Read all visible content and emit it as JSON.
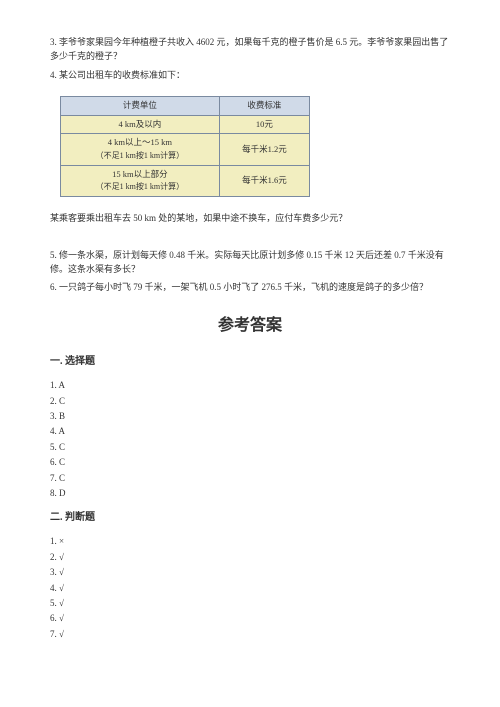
{
  "questions": {
    "q3": "3. 李爷爷家果园今年种植橙子共收入 4602 元，如果每千克的橙子售价是 6.5 元。李爷爷家果园出售了多少千克的橙子？",
    "q4": "4. 某公司出租车的收费标准如下：",
    "q4_follow": "某乘客要乘出租车去 50 km 处的某地，如果中途不换车，应付车费多少元？",
    "q5": "5. 修一条水渠，原计划每天修 0.48 千米。实际每天比原计划多修 0.15 千米 12 天后还差 0.7 千米没有修。这条水渠有多长？",
    "q6": "6. 一只鸽子每小时飞 79 千米，一架飞机 0.5 小时飞了 276.5 千米，飞机的速度是鸽子的多少倍？"
  },
  "table": {
    "header_left": "计费单位",
    "header_right": "收费标准",
    "border_color": "#7a8aa0",
    "header_bg": "#d0dae8",
    "cell_bg": "#f2eec0",
    "rows": [
      {
        "left_main": "4 km及以内",
        "left_sub": "",
        "right": "10元"
      },
      {
        "left_main": "4 km以上～15 km",
        "left_sub": "（不足1 km按1 km计算）",
        "right": "每千米1.2元"
      },
      {
        "left_main": "15 km以上部分",
        "left_sub": "（不足1 km按1 km计算）",
        "right": "每千米1.6元"
      }
    ]
  },
  "answers_title": "参考答案",
  "section1_title": "一. 选择题",
  "section2_title": "二. 判断题",
  "choice_answers": [
    {
      "n": "1.",
      "v": "A"
    },
    {
      "n": "2.",
      "v": "C"
    },
    {
      "n": "3.",
      "v": "B"
    },
    {
      "n": "4.",
      "v": "A"
    },
    {
      "n": "5.",
      "v": "C"
    },
    {
      "n": "6.",
      "v": "C"
    },
    {
      "n": "7.",
      "v": "C"
    },
    {
      "n": "8.",
      "v": "D"
    }
  ],
  "judge_answers": [
    {
      "n": "1.",
      "v": "×"
    },
    {
      "n": "2.",
      "v": "√"
    },
    {
      "n": "3.",
      "v": "√"
    },
    {
      "n": "4.",
      "v": "√"
    },
    {
      "n": "5.",
      "v": "√"
    },
    {
      "n": "6.",
      "v": "√"
    },
    {
      "n": "7.",
      "v": "√"
    }
  ]
}
